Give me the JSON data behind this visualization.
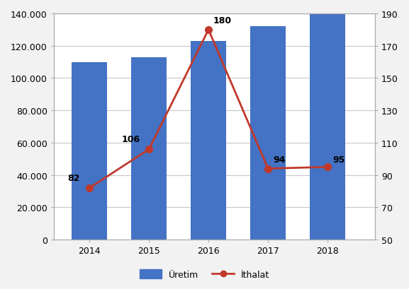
{
  "years": [
    2014,
    2015,
    2016,
    2017,
    2018
  ],
  "uretim": [
    110000,
    113000,
    123000,
    132000,
    140000
  ],
  "ithalat": [
    82,
    106,
    180,
    94,
    95
  ],
  "bar_color": "#4472C4",
  "line_color": "#C0392B",
  "marker_color": "#C0392B",
  "legend_uretim": "Üretim",
  "legend_ithalat": "İthalat",
  "ylim_left": [
    0,
    140000
  ],
  "ylim_right": [
    50,
    190
  ],
  "yticks_left": [
    0,
    20000,
    40000,
    60000,
    80000,
    100000,
    120000,
    140000
  ],
  "yticks_right": [
    50,
    70,
    90,
    110,
    130,
    150,
    170,
    190
  ],
  "annotations": [
    {
      "year": 2014,
      "value": 82,
      "label": "82",
      "ox": -22,
      "oy": 8
    },
    {
      "year": 2015,
      "value": 106,
      "label": "106",
      "ox": -28,
      "oy": 8
    },
    {
      "year": 2016,
      "value": 180,
      "label": "180",
      "ox": 5,
      "oy": 7
    },
    {
      "year": 2017,
      "value": 94,
      "label": "94",
      "ox": 5,
      "oy": 7
    },
    {
      "year": 2018,
      "value": 95,
      "label": "95",
      "ox": 5,
      "oy": 5
    }
  ],
  "background_color": "#FFFFFF",
  "figure_bg": "#F2F2F2",
  "grid_color": "#C8C8C8",
  "spine_color": "#AAAAAA"
}
